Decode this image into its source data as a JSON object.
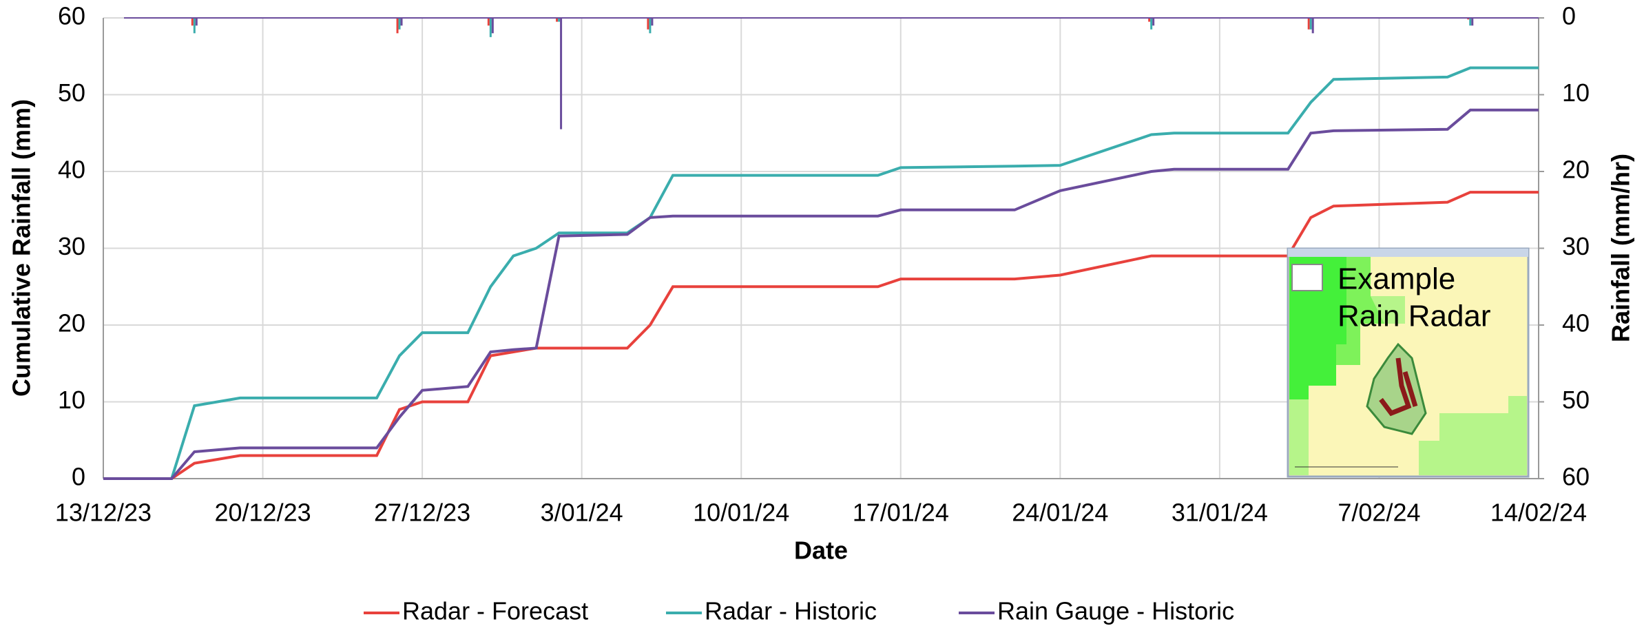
{
  "chart_data": {
    "type": "line",
    "x_label": "Date",
    "y_label": "Cumulative Rainfall (mm)",
    "y2_label": "Rainfall (mm/hr)",
    "annotation": [
      "Example",
      "Rain Radar"
    ],
    "x": [
      "13/12/23",
      "16/12/23",
      "17/12/23",
      "19/12/23",
      "25/12/23",
      "26/12/23",
      "27/12/23",
      "29/12/23",
      "30/12/23",
      "31/12/23",
      "1/01/24",
      "2/01/24",
      "5/01/24",
      "6/01/24",
      "7/01/24",
      "16/01/24",
      "17/01/24",
      "22/01/24",
      "24/01/24",
      "28/01/24",
      "29/01/24",
      "3/02/24",
      "4/02/24",
      "5/02/24",
      "10/02/24",
      "11/02/24",
      "14/02/24"
    ],
    "series": [
      {
        "name": "Radar - Forecast",
        "color": "#e8413c",
        "values": [
          0,
          0,
          2,
          3,
          3,
          9,
          10,
          10,
          16,
          16.5,
          17,
          17,
          17,
          20,
          25,
          25,
          26,
          26,
          26.5,
          29,
          29,
          29,
          34,
          35.5,
          36,
          37.3,
          37.3
        ]
      },
      {
        "name": "Radar - Historic",
        "color": "#3aadad",
        "values": [
          0,
          0,
          9.5,
          10.5,
          10.5,
          16,
          19,
          19,
          25,
          29,
          30,
          32,
          32,
          34,
          39.5,
          39.5,
          40.5,
          40.7,
          40.8,
          44.8,
          45,
          45,
          49,
          52,
          52.3,
          53.5,
          53.5
        ]
      },
      {
        "name": "Rain Gauge - Historic",
        "color": "#6a4c9c",
        "values": [
          0,
          0,
          3.5,
          4,
          4,
          8,
          11.5,
          12,
          16.5,
          16.8,
          17,
          31.6,
          31.8,
          34,
          34.2,
          34.2,
          35,
          35,
          37.5,
          40,
          40.3,
          40.3,
          45,
          45.3,
          45.5,
          48,
          48
        ]
      }
    ],
    "rainfall": {
      "axis": "y2",
      "x": [
        "17/12/23",
        "26/12/23",
        "30/12/23",
        "2/01/24",
        "6/01/24",
        "28/01/24",
        "4/02/24",
        "11/02/24"
      ],
      "series": [
        {
          "color": "#e8413c",
          "values": [
            1,
            2,
            1,
            0.5,
            1.5,
            0.5,
            1.5,
            0.2
          ]
        },
        {
          "color": "#3aadad",
          "values": [
            2,
            1.5,
            2.5,
            0.5,
            2,
            1.5,
            1.5,
            1
          ]
        },
        {
          "color": "#6a4c9c",
          "values": [
            1,
            1,
            2,
            14.5,
            1,
            1,
            2,
            1
          ]
        }
      ]
    },
    "xlim": [
      "13/12/23",
      "14/02/24"
    ],
    "xticks": [
      "13/12/23",
      "20/12/23",
      "27/12/23",
      "3/01/24",
      "10/01/24",
      "17/01/24",
      "24/01/24",
      "31/01/24",
      "7/02/24",
      "14/02/24"
    ],
    "ylim": [
      0,
      60
    ],
    "yticks": [
      0,
      10,
      20,
      30,
      40,
      50,
      60
    ],
    "y2lim": [
      60,
      0
    ],
    "y2ticks": [
      0,
      10,
      20,
      30,
      40,
      50,
      60
    ],
    "grid": true,
    "legend": "bottom"
  }
}
